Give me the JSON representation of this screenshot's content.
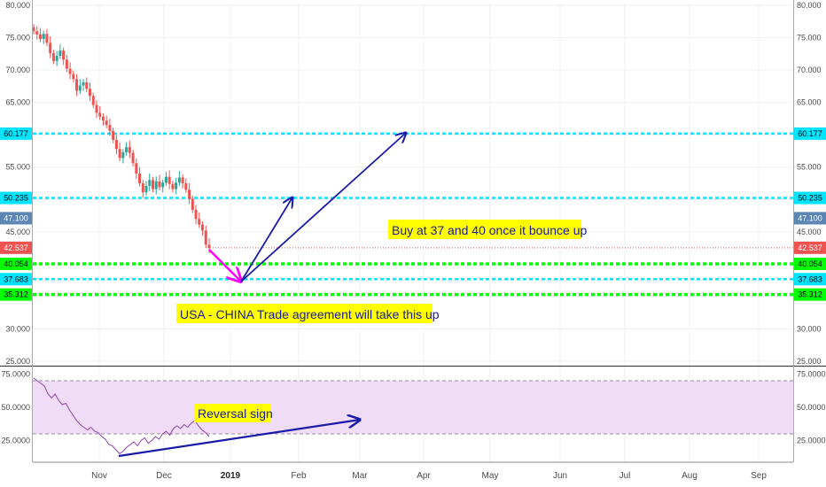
{
  "chart_data": [
    {
      "type": "candlestick",
      "title": "",
      "y_ticks": [
        "80.000",
        "75.000",
        "70.000",
        "65.000",
        "60.000",
        "55.000",
        "50.000",
        "45.000",
        "40.000",
        "35.000",
        "30.000",
        "25.000"
      ],
      "ylim": [
        25,
        80
      ],
      "x_ticks": [
        {
          "label": "Nov",
          "bold": false
        },
        {
          "label": "Dec",
          "bold": false
        },
        {
          "label": "2019",
          "bold": true
        },
        {
          "label": "Feb",
          "bold": false
        },
        {
          "label": "Mar",
          "bold": false
        },
        {
          "label": "Apr",
          "bold": false
        },
        {
          "label": "May",
          "bold": false
        },
        {
          "label": "Jun",
          "bold": false
        },
        {
          "label": "Jul",
          "bold": false
        },
        {
          "label": "Aug",
          "bold": false
        },
        {
          "label": "Sep",
          "bold": false
        }
      ],
      "grid": true,
      "close_series": [
        76,
        75.5,
        74.8,
        75.6,
        74.2,
        72.6,
        71.4,
        72.2,
        73.0,
        71.6,
        70.2,
        69.4,
        68.6,
        66.8,
        67.6,
        68.1,
        67.1,
        66.0,
        64.6,
        63.4,
        62.8,
        62.2,
        61.5,
        60.6,
        59.2,
        57.8,
        56.4,
        57.3,
        58.1,
        57.2,
        55.6,
        54.0,
        52.5,
        51.1,
        52.1,
        53.0,
        51.6,
        52.8,
        51.9,
        52.6,
        53.5,
        52.4,
        51.6,
        52.6,
        53.4,
        52.5,
        51.5,
        50.1,
        48.4,
        47.0,
        46.1,
        45.2,
        43.0,
        42.5
      ],
      "price_labels": [
        {
          "value": 60.177,
          "label": "60.177",
          "color": "#00e5ff",
          "line": true
        },
        {
          "value": 50.235,
          "label": "50.235",
          "color": "#00e5ff",
          "line": true
        },
        {
          "value": 47.1,
          "label": "47.100",
          "color": "#5b86b3",
          "line": false
        },
        {
          "value": 42.537,
          "label": "42.537",
          "color": "#ef5350",
          "line": false
        },
        {
          "value": 40.054,
          "label": "40.054",
          "color": "#00ff00",
          "line": true
        },
        {
          "value": 37.683,
          "label": "37.683",
          "color": "#00e5ff",
          "line": true
        },
        {
          "value": 35.312,
          "label": "35.312",
          "color": "#00ff00",
          "line": true
        }
      ],
      "annotations": [
        {
          "text": "Buy at 37 and 40 once it bounce up"
        },
        {
          "text": "USA - CHINA Trade agreement will take this up"
        }
      ],
      "colors": {
        "up": "#26a69a",
        "down": "#ef5350",
        "magenta_arrow": "#ff00ff",
        "blue_arrow": "#1a1aa8",
        "label_bg": "#ffff00"
      }
    },
    {
      "type": "line",
      "title": "",
      "y_ticks": [
        "75.0000",
        "50.0000",
        "25.0000"
      ],
      "ylim": [
        10,
        80
      ],
      "band": [
        30,
        70
      ],
      "values": [
        72,
        70,
        68,
        66,
        60,
        57,
        60,
        55,
        52,
        53,
        48,
        44,
        40,
        37,
        35,
        33,
        35,
        32,
        31,
        28,
        26,
        22,
        21,
        18,
        15,
        17,
        20,
        22,
        24,
        21,
        25,
        27,
        23,
        25,
        28,
        26,
        30,
        32,
        29,
        34,
        36,
        34,
        37,
        35,
        38,
        40,
        36,
        33,
        31,
        28
      ],
      "annotations": [
        {
          "text": "Reversal sign"
        }
      ],
      "colors": {
        "line": "#8e44ad",
        "band": "#f0dcf7",
        "arrow": "#1a1aa8"
      }
    }
  ]
}
